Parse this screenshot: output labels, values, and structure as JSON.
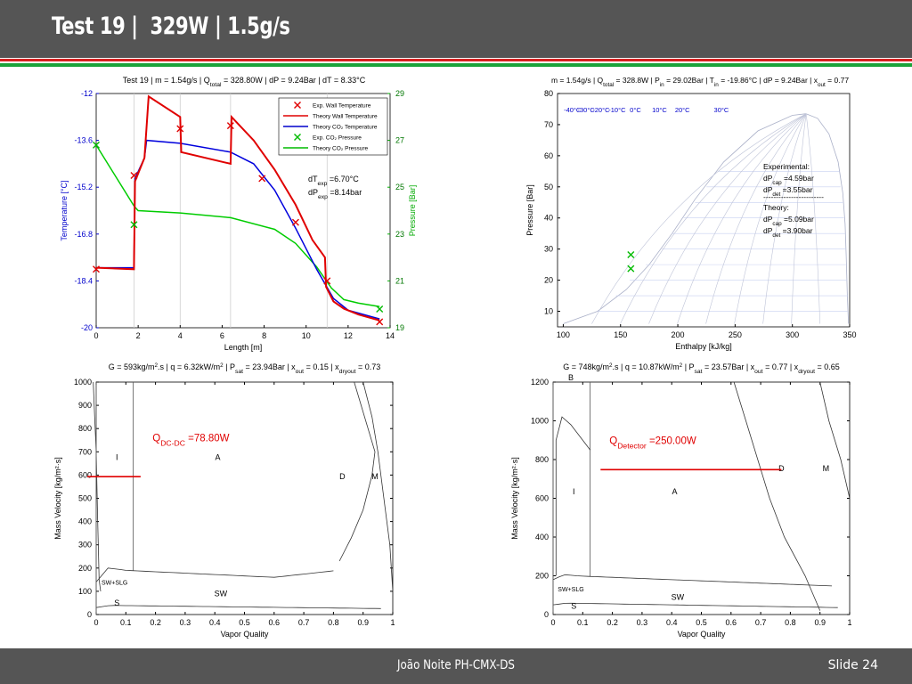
{
  "slide": {
    "title": "Test 19 |  329W | 1.5g/s",
    "footer_author": "João Noite PH-CMX-DS",
    "footer_slide": "Slide 24",
    "colors": {
      "header_bg": "#555555",
      "stripe_red": "#d62020",
      "stripe_green": "#1aa33a"
    }
  },
  "chart_data": [
    {
      "id": "temp-pressure",
      "type": "line",
      "title_parts": [
        "Test 19 | m = 1.54g/s | Q",
        "total",
        " = 328.80W | dP = 9.24Bar | dT = 8.33°C"
      ],
      "xlabel": "Length [m]",
      "ylabel": "Temperature [°C]",
      "ylabel2": "Pressure [Bar]",
      "xlim": [
        0,
        14
      ],
      "ylim": [
        -20,
        -12
      ],
      "ylim2": [
        19,
        29
      ],
      "xticks": [
        "0",
        "2",
        "4",
        "6",
        "8",
        "10",
        "12",
        "14"
      ],
      "yticks": [
        "-20",
        "-18.4",
        "-16.8",
        "-15.2",
        "-13.6",
        "-12"
      ],
      "yticks2": [
        "19",
        "21",
        "23",
        "25",
        "27",
        "29"
      ],
      "legend": [
        {
          "label": "Exp. Wall Temperature",
          "color": "#e00000",
          "marker": "x"
        },
        {
          "label": "Theory  Wall Temperature",
          "color": "#e00000",
          "marker": "line"
        },
        {
          "label": "Theory  CO₂ Temperature",
          "color": "#0000cc",
          "marker": "line"
        },
        {
          "label": "Exp. CO₂ Pressure",
          "color": "#00bb00",
          "marker": "x"
        },
        {
          "label": "Theory  CO₂ Pressure",
          "color": "#00bb00",
          "marker": "line"
        }
      ],
      "annotation": {
        "dT_label": "dT",
        "dT_sub": "exp",
        "dT_value": " =6.70°C",
        "dP_label": "dP",
        "dP_sub": "exp",
        "dP_value": " =8.14bar"
      },
      "exp_wall_temperature": {
        "x": [
          0,
          1.8,
          4.0,
          6.4,
          7.9,
          9.5,
          11.0,
          13.5
        ],
        "y": [
          -18.0,
          -14.8,
          -13.2,
          -13.1,
          -14.9,
          -16.4,
          -18.4,
          -19.8
        ]
      },
      "theory_wall_temperature": {
        "x": [
          0,
          1.8,
          1.85,
          2.3,
          2.5,
          4.0,
          4.05,
          6.4,
          6.45,
          7.5,
          8.5,
          9.5,
          10.3,
          10.9,
          10.95,
          11.3,
          11.8,
          12.5,
          13.5
        ],
        "y": [
          -17.95,
          -18.0,
          -15.0,
          -14.2,
          -12.1,
          -12.8,
          -14.0,
          -14.4,
          -12.8,
          -13.6,
          -14.6,
          -15.8,
          -17.0,
          -17.6,
          -18.6,
          -19.1,
          -19.35,
          -19.55,
          -19.75
        ]
      },
      "theory_co2_temperature": {
        "x": [
          0,
          1.8,
          1.85,
          2.3,
          2.4,
          4.0,
          6.4,
          7.5,
          8.5,
          9.5,
          10.5,
          11.3,
          12.0,
          13.5
        ],
        "y": [
          -17.95,
          -17.95,
          -14.9,
          -14.2,
          -13.6,
          -13.7,
          -14.0,
          -14.4,
          -15.3,
          -16.6,
          -18.0,
          -19.0,
          -19.4,
          -19.7
        ]
      },
      "exp_co2_pressure": {
        "x": [
          0,
          1.8,
          13.5
        ],
        "y": [
          26.8,
          23.4,
          19.8
        ]
      },
      "theory_co2_pressure": {
        "x": [
          0,
          1.8,
          2.0,
          4.0,
          6.4,
          8.5,
          9.5,
          10.5,
          11.2,
          11.8,
          12.5,
          13.5
        ],
        "y": [
          26.8,
          24.2,
          24.0,
          23.9,
          23.7,
          23.2,
          22.6,
          21.6,
          20.7,
          20.2,
          20.05,
          19.9
        ]
      }
    },
    {
      "id": "ph-diagram",
      "type": "scatter",
      "title_parts": [
        "m = 1.54g/s | Q",
        "total",
        " = 328.8W | P",
        "in",
        " = 29.02Bar | T",
        "in",
        " = -19.86°C | dP = 9.24Bar | x",
        "out",
        " = 0.77"
      ],
      "xlabel": "Enthalpy [kJ/kg]",
      "ylabel": "Pressure [Bar]",
      "xlim": [
        95,
        350
      ],
      "ylim": [
        5,
        80
      ],
      "xticks": [
        "100",
        "150",
        "200",
        "250",
        "300",
        "350"
      ],
      "yticks": [
        "10",
        "20",
        "30",
        "40",
        "50",
        "60",
        "70",
        "80"
      ],
      "isotherm_labels": [
        "-40°C",
        "-30°C",
        "-20°C",
        "-10°C",
        "0°C",
        "10°C",
        "20°C",
        "30°C"
      ],
      "experimental_points": {
        "x": [
          159,
          159
        ],
        "y": [
          28.2,
          23.7
        ]
      },
      "text_block": [
        "Experimental:",
        "dP|cap| =4.59bar",
        "dP|det| =3.55bar",
        "------------------------",
        "Theory:",
        "dP|cap| =5.09bar",
        "dP|det| =3.90bar"
      ]
    },
    {
      "id": "flow-map-dcdc",
      "type": "line",
      "title_parts": [
        "G = 593kg/m",
        "2",
        ".s | q = 6.32kW/m",
        "2",
        " | P",
        "sat",
        " = 23.94Bar | x",
        "out",
        " = 0.15 | x",
        "dryout",
        " = 0.73"
      ],
      "xlabel": "Vapor Quality",
      "ylabel": "Mass Velocity [kg/m²·s]",
      "xlim": [
        0,
        1
      ],
      "ylim": [
        0,
        1000
      ],
      "xticks": [
        "0",
        "0.1",
        "0.2",
        "0.3",
        "0.4",
        "0.5",
        "0.6",
        "0.7",
        "0.8",
        "0.9",
        "1"
      ],
      "yticks": [
        "0",
        "100",
        "200",
        "300",
        "400",
        "500",
        "600",
        "700",
        "800",
        "900",
        "1000"
      ],
      "regions": [
        "I",
        "A",
        "D",
        "M",
        "SW+SLG",
        "SW",
        "S"
      ],
      "heat_label": "Q",
      "heat_sub": "DC-DC",
      "heat_value": " =78.80W",
      "operating_line": {
        "x": [
          -0.03,
          0.15
        ],
        "y": [
          593,
          593
        ]
      }
    },
    {
      "id": "flow-map-detector",
      "type": "line",
      "title_parts": [
        "G = 748kg/m",
        "2",
        ".s | q = 10.87kW/m",
        "2",
        " | P",
        "sat",
        " = 23.57Bar | x",
        "out",
        " = 0.77 | x",
        "dryout",
        " = 0.65"
      ],
      "xlabel": "Vapor Quality",
      "ylabel": "Mass Velocity [kg/m²·s]",
      "xlim": [
        0,
        1
      ],
      "ylim": [
        0,
        1200
      ],
      "xticks": [
        "0",
        "0.1",
        "0.2",
        "0.3",
        "0.4",
        "0.5",
        "0.6",
        "0.7",
        "0.8",
        "0.9",
        "1"
      ],
      "yticks": [
        "0",
        "200",
        "400",
        "600",
        "800",
        "1000",
        "1200"
      ],
      "regions": [
        "I",
        "A",
        "D",
        "M",
        "SW+SLG",
        "SW",
        "S",
        "B"
      ],
      "heat_label": "Q",
      "heat_sub": "Detector",
      "heat_value": " =250.00W",
      "operating_line": {
        "x": [
          0.16,
          0.77
        ],
        "y": [
          748,
          748
        ]
      }
    }
  ]
}
